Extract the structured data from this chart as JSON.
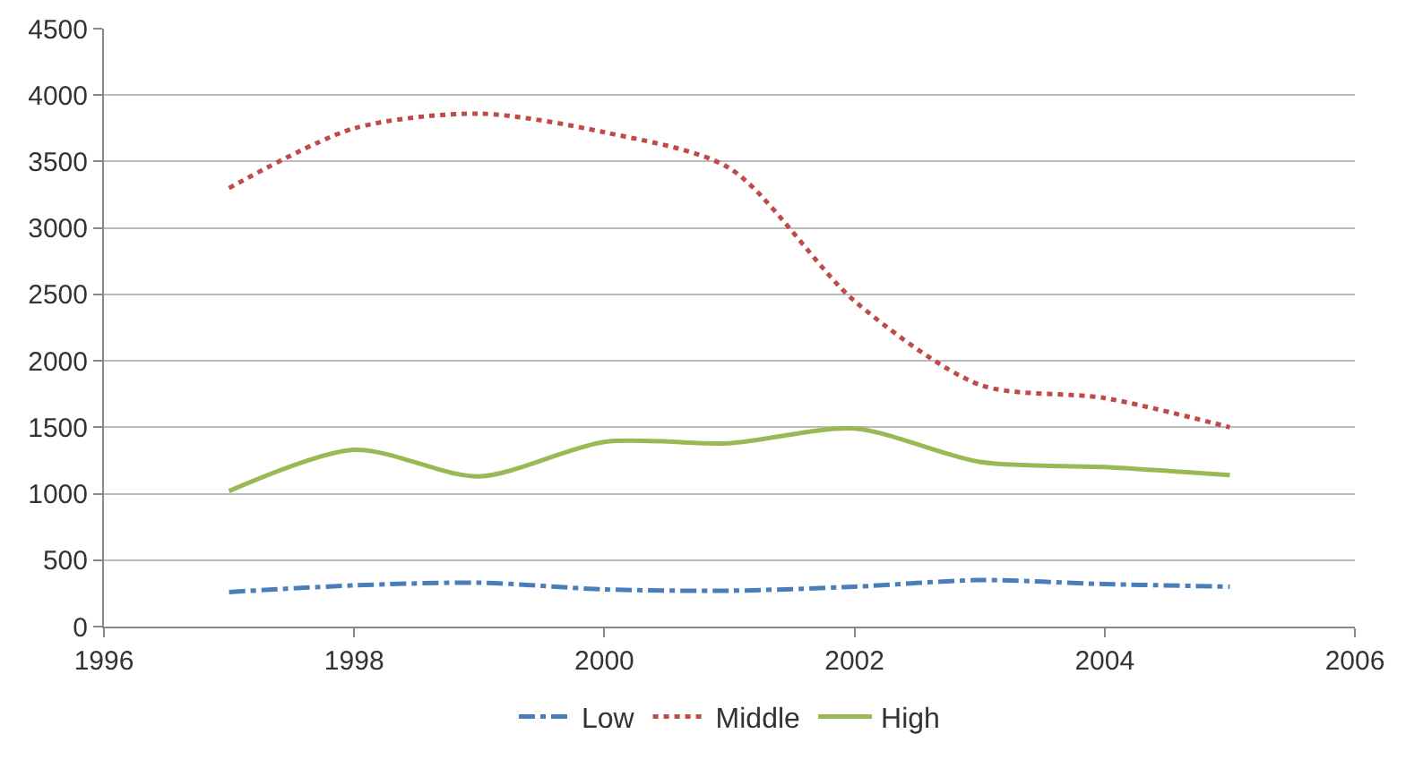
{
  "chart_data": {
    "type": "line",
    "x": [
      1997,
      1998,
      1999,
      2000,
      2001,
      2002,
      2003,
      2004,
      2005
    ],
    "series": [
      {
        "name": "Low",
        "color": "#4a7ebb",
        "line_style": "dashed",
        "values": [
          260,
          310,
          330,
          280,
          270,
          300,
          350,
          320,
          300
        ]
      },
      {
        "name": "Middle",
        "color": "#be4b48",
        "line_style": "dotted",
        "values": [
          3300,
          3750,
          3860,
          3720,
          3450,
          2450,
          1820,
          1720,
          1500
        ]
      },
      {
        "name": "High",
        "color": "#98b954",
        "line_style": "solid",
        "values": [
          1020,
          1330,
          1130,
          1390,
          1380,
          1490,
          1240,
          1200,
          1140
        ]
      }
    ],
    "xlim": [
      1996,
      2006
    ],
    "xticks": [
      1996,
      1998,
      2000,
      2002,
      2004,
      2006
    ],
    "ylim": [
      0,
      4500
    ],
    "yticks": [
      0,
      500,
      1000,
      1500,
      2000,
      2500,
      3000,
      3500,
      4000,
      4500
    ],
    "grid": "y",
    "legend": "bottom",
    "marker": "none"
  }
}
